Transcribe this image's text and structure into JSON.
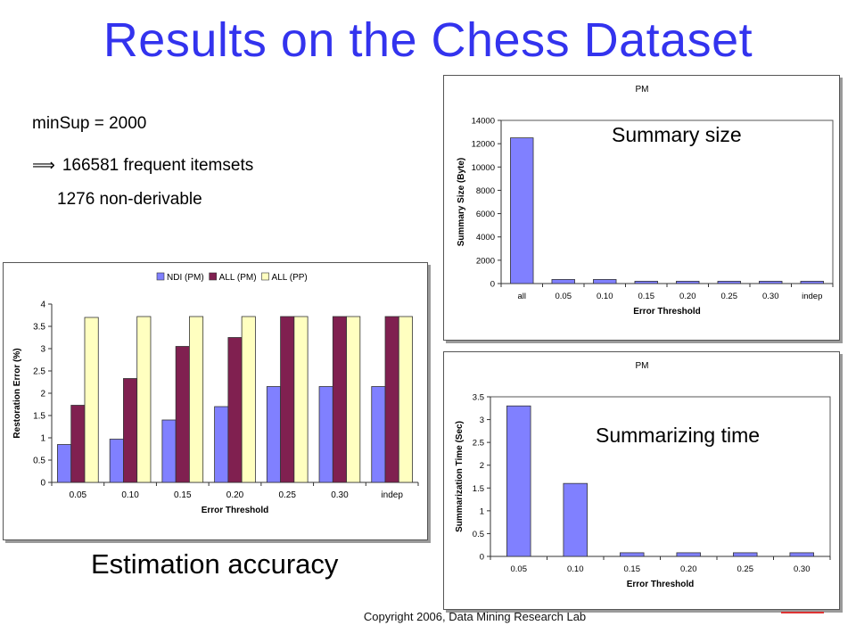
{
  "slide": {
    "title": "Results on the Chess Dataset",
    "info": {
      "minsup": "minSup = 2000",
      "implies_symbol": "⟹",
      "frequent": "166581 frequent itemsets",
      "nonderivable": "1276 non-derivable"
    },
    "captions": {
      "summary_size": "Summary size",
      "summarizing_time": "Summarizing time",
      "estimation_accuracy": "Estimation accuracy"
    },
    "footer": "Copyright 2006, Data Mining Research Lab"
  },
  "chart_data": [
    {
      "id": "restoration",
      "type": "bar",
      "categories": [
        "0.05",
        "0.10",
        "0.15",
        "0.20",
        "0.25",
        "0.30",
        "indep"
      ],
      "series": [
        {
          "name": "NDI (PM)",
          "color": "#8080ff",
          "values": [
            0.85,
            0.97,
            1.4,
            1.7,
            2.15,
            2.15,
            2.15
          ]
        },
        {
          "name": "ALL (PM)",
          "color": "#802050",
          "values": [
            1.73,
            2.33,
            3.05,
            3.25,
            3.72,
            3.72,
            3.72
          ]
        },
        {
          "name": "ALL (PP)",
          "color": "#ffffc0",
          "values": [
            3.7,
            3.72,
            3.72,
            3.72,
            3.72,
            3.72,
            3.72
          ]
        }
      ],
      "title": "",
      "xlabel": "Error Threshold",
      "ylabel": "Restoration Error (%)",
      "ylim": [
        0,
        4
      ],
      "yticks": [
        "0",
        "0.5",
        "1",
        "1.5",
        "2",
        "2.5",
        "3",
        "3.5",
        "4"
      ],
      "legend": "top"
    },
    {
      "id": "summary_size",
      "type": "bar",
      "categories": [
        "all",
        "0.05",
        "0.10",
        "0.15",
        "0.20",
        "0.25",
        "0.30",
        "indep"
      ],
      "series": [
        {
          "color": "#8080ff",
          "values": [
            12500,
            350,
            350,
            200,
            200,
            200,
            200,
            200
          ]
        }
      ],
      "title": "PM",
      "xlabel": "Error Threshold",
      "ylabel": "Summary Size (Byte)",
      "ylim": [
        0,
        14000
      ],
      "yticks": [
        "0",
        "2000",
        "4000",
        "6000",
        "8000",
        "10000",
        "12000",
        "14000"
      ]
    },
    {
      "id": "summarizing_time",
      "type": "bar",
      "categories": [
        "0.05",
        "0.10",
        "0.15",
        "0.20",
        "0.25",
        "0.30"
      ],
      "series": [
        {
          "color": "#8080ff",
          "values": [
            3.3,
            1.6,
            0.08,
            0.08,
            0.08,
            0.08
          ]
        }
      ],
      "title": "PM",
      "xlabel": "Error Threshold",
      "ylabel": "Summarization Time (Sec)",
      "ylim": [
        0,
        3.5
      ],
      "yticks": [
        "0",
        "0.5",
        "1",
        "1.5",
        "2",
        "2.5",
        "3",
        "3.5"
      ]
    }
  ]
}
